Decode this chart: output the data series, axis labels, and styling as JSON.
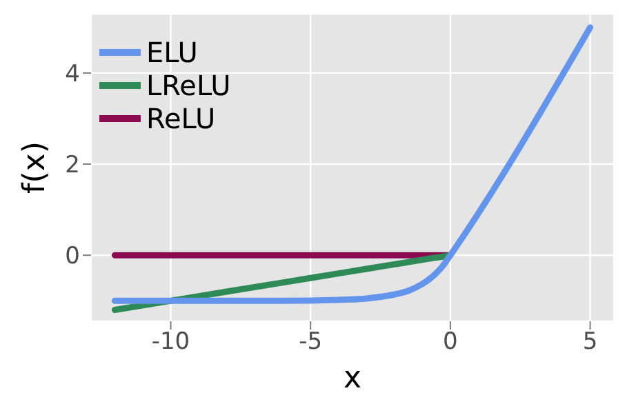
{
  "chart_data": {
    "type": "line",
    "xlabel": "x",
    "ylabel": "f(x)",
    "x": [
      -12,
      -8,
      -6,
      -4,
      -3,
      -2,
      -1.5,
      -1,
      -0.5,
      -0.25,
      0,
      5
    ],
    "series": [
      {
        "name": "ELU",
        "color": "#6495ed",
        "values": [
          -1,
          -1,
          -1,
          -0.98,
          -0.95,
          -0.86,
          -0.78,
          -0.63,
          -0.39,
          -0.22,
          0,
          5
        ]
      },
      {
        "name": "LReLU",
        "color": "#2e8b57",
        "values": [
          -1.2,
          -0.8,
          -0.6,
          -0.4,
          -0.3,
          -0.2,
          -0.15,
          -0.1,
          -0.05,
          -0.03,
          0,
          null
        ]
      },
      {
        "name": "ReLU",
        "color": "#8b0a50",
        "values": [
          0,
          0,
          0,
          0,
          0,
          0,
          0,
          0,
          0,
          0,
          0,
          null
        ]
      }
    ],
    "xlim": [
      -12.85,
      5.85
    ],
    "xticks": [
      -10,
      -5,
      0,
      5
    ],
    "ylim": [
      -1.45,
      5.3
    ],
    "yticks": [
      0,
      2,
      4
    ],
    "grid": true,
    "legend": "top left",
    "marker": "none",
    "line_style": "solid"
  }
}
